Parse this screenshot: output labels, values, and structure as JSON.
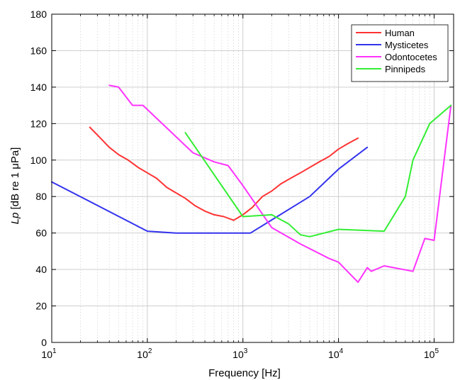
{
  "chart_data": {
    "type": "line",
    "xlabel": "Frequency [Hz]",
    "ylabel_italic": "Lp",
    "ylabel_rest": " [dB re 1 μPa]",
    "xscale": "log",
    "xlim": [
      10,
      160000
    ],
    "ylim": [
      0,
      180
    ],
    "yticks": [
      0,
      20,
      40,
      60,
      80,
      100,
      120,
      140,
      160,
      180
    ],
    "xticks": [
      {
        "value": 10,
        "base": "10",
        "exp": "1"
      },
      {
        "value": 100,
        "base": "10",
        "exp": "2"
      },
      {
        "value": 1000,
        "base": "10",
        "exp": "3"
      },
      {
        "value": 10000,
        "base": "10",
        "exp": "4"
      },
      {
        "value": 100000,
        "base": "10",
        "exp": "5"
      }
    ],
    "grid": true,
    "legend_position": "top-right",
    "series": [
      {
        "name": "Human",
        "color": "#ff3333",
        "points": [
          [
            25,
            118
          ],
          [
            31,
            113
          ],
          [
            40,
            107
          ],
          [
            50,
            103
          ],
          [
            63,
            100
          ],
          [
            80,
            96
          ],
          [
            100,
            93
          ],
          [
            125,
            90
          ],
          [
            160,
            85
          ],
          [
            200,
            82
          ],
          [
            250,
            79
          ],
          [
            315,
            75
          ],
          [
            400,
            72
          ],
          [
            500,
            70
          ],
          [
            630,
            69
          ],
          [
            800,
            67
          ],
          [
            1000,
            70
          ],
          [
            1250,
            74
          ],
          [
            1600,
            80
          ],
          [
            2000,
            83
          ],
          [
            2500,
            87
          ],
          [
            3150,
            90
          ],
          [
            4000,
            93
          ],
          [
            5000,
            96
          ],
          [
            6300,
            99
          ],
          [
            8000,
            102
          ],
          [
            10000,
            106
          ],
          [
            12500,
            109
          ],
          [
            16000,
            112
          ]
        ]
      },
      {
        "name": "Mysticetes",
        "color": "#3333ee",
        "points": [
          [
            10,
            88
          ],
          [
            100,
            61
          ],
          [
            200,
            60
          ],
          [
            1200,
            60
          ],
          [
            5000,
            80
          ],
          [
            10000,
            95
          ],
          [
            20000,
            107
          ]
        ]
      },
      {
        "name": "Odontocetes",
        "color": "#ff33ff",
        "points": [
          [
            40,
            141
          ],
          [
            50,
            140
          ],
          [
            70,
            130
          ],
          [
            90,
            130
          ],
          [
            300,
            104
          ],
          [
            500,
            99
          ],
          [
            700,
            97
          ],
          [
            1000,
            86
          ],
          [
            2000,
            63
          ],
          [
            4000,
            54
          ],
          [
            8000,
            46
          ],
          [
            10000,
            44
          ],
          [
            16000,
            33
          ],
          [
            20000,
            41
          ],
          [
            22000,
            39
          ],
          [
            30000,
            42
          ],
          [
            60000,
            39
          ],
          [
            80000,
            57
          ],
          [
            100000,
            56
          ],
          [
            150000,
            130
          ]
        ]
      },
      {
        "name": "Pinnipeds",
        "color": "#33ee33",
        "points": [
          [
            250,
            115
          ],
          [
            1000,
            69
          ],
          [
            2000,
            70
          ],
          [
            3000,
            65
          ],
          [
            4000,
            59
          ],
          [
            5000,
            58
          ],
          [
            10000,
            62
          ],
          [
            30000,
            61
          ],
          [
            50000,
            80
          ],
          [
            60000,
            100
          ],
          [
            90000,
            120
          ],
          [
            150000,
            130
          ]
        ]
      }
    ]
  }
}
